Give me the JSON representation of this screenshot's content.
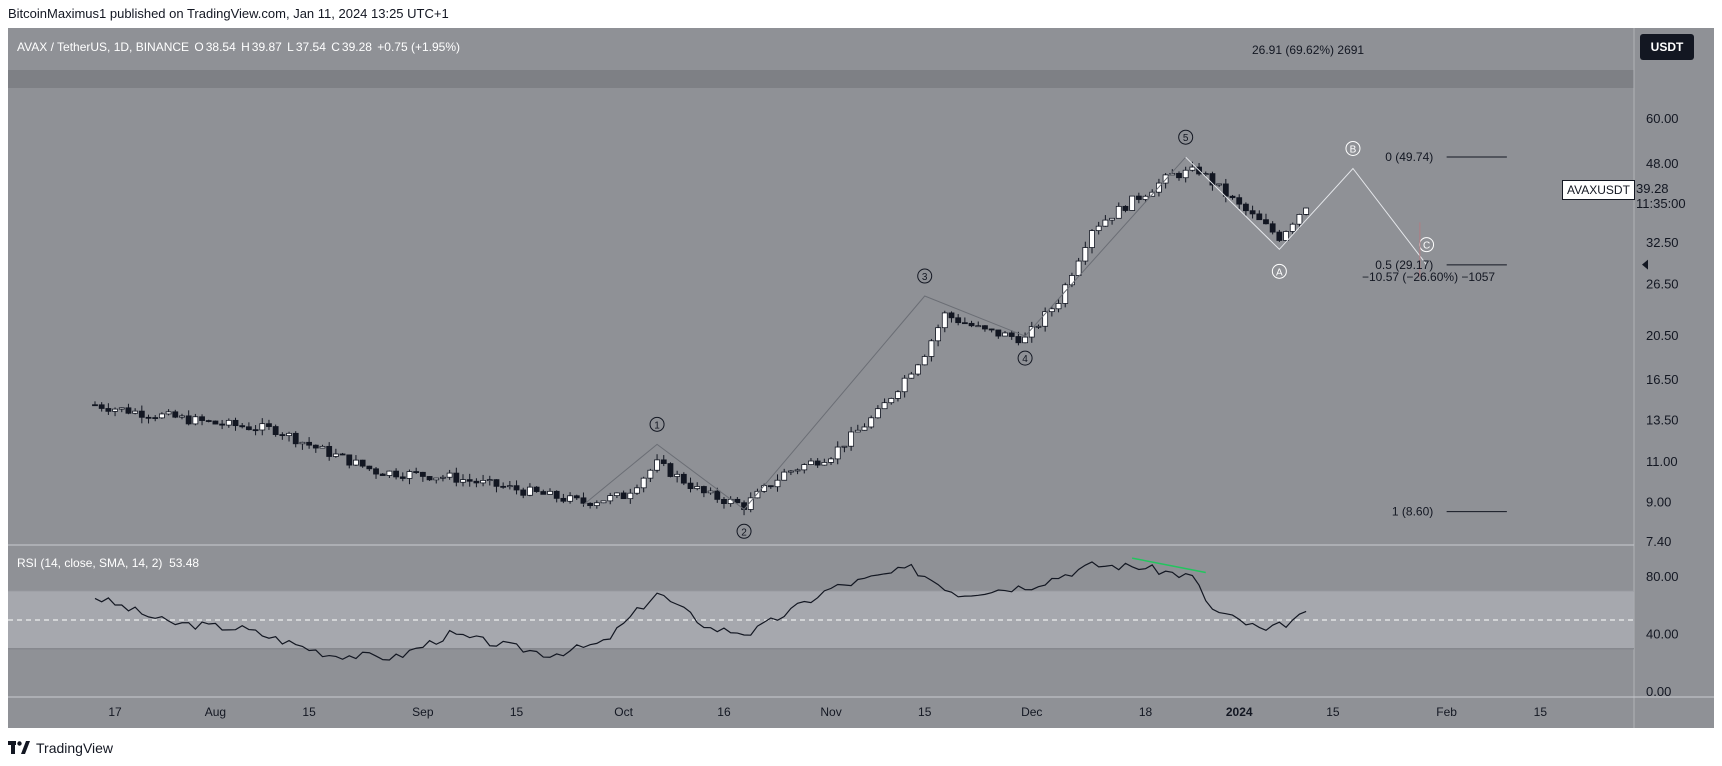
{
  "header": {
    "publisher_line": "BitcoinMaximus1 published on TradingView.com, Jan 11, 2024 13:25 UTC+1"
  },
  "footer": {
    "brand": "TradingView"
  },
  "legend": {
    "symbol": "AVAX / TetherUS, 1D, BINANCE",
    "open_label": "O",
    "open": "38.54",
    "high_label": "H",
    "high": "39.87",
    "low_label": "L",
    "low": "37.54",
    "close_label": "C",
    "close": "39.28",
    "change": "+0.75 (+1.95%)"
  },
  "rsi_legend": {
    "label": "RSI (14, close, SMA, 14, 2)",
    "value": "53.48"
  },
  "currency_button": "USDT",
  "symbol_tag": "AVAXUSDT",
  "current_price": "39.28",
  "countdown": "11:35:00",
  "measure_up": "26.91 (69.62%) 2691",
  "measure_down": "−10.57 (−26.60%) −1057",
  "colors": {
    "panel": "#8f9196",
    "up_candle": "#ffffff",
    "down_candle": "#131722",
    "rsi_line": "#131722",
    "rsi_band": "#a9abb0",
    "divergence": "#22c55e",
    "wave_line": "#6b6e75",
    "projection_line": "#e5e7eb"
  },
  "chart_data": {
    "type": "candlestick",
    "price_axis": {
      "scale": "log",
      "ticks": [
        60.0,
        48.0,
        32.5,
        26.5,
        20.5,
        16.5,
        13.5,
        11.0,
        9.0,
        7.4
      ],
      "tick_labels": [
        "60.00",
        "48.00",
        "32.50",
        "26.50",
        "20.50",
        "16.50",
        "13.50",
        "11.00",
        "9.00",
        "7.40"
      ]
    },
    "rsi_axis": {
      "ticks": [
        80,
        40,
        0
      ],
      "tick_labels": [
        "80.00",
        "40.00",
        "0.00"
      ],
      "band": [
        30,
        70
      ],
      "midline": 50
    },
    "time_axis": {
      "labels": [
        "17",
        "Aug",
        "15",
        "Sep",
        "15",
        "Oct",
        "16",
        "Nov",
        "15",
        "Dec",
        "18",
        "2024",
        "15",
        "Feb",
        "15"
      ],
      "dates": [
        "2023-07-17",
        "2023-08-01",
        "2023-08-15",
        "2023-09-01",
        "2023-09-15",
        "2023-10-01",
        "2023-10-16",
        "2023-11-01",
        "2023-11-15",
        "2023-12-01",
        "2023-12-18",
        "2024-01-01",
        "2024-01-15",
        "2024-02-01",
        "2024-02-15"
      ]
    },
    "price_path": {
      "dates": [
        "2023-07-14",
        "2023-07-20",
        "2023-08-01",
        "2023-08-10",
        "2023-08-16",
        "2023-08-25",
        "2023-09-05",
        "2023-09-15",
        "2023-09-25",
        "2023-10-01",
        "2023-10-06",
        "2023-10-13",
        "2023-10-19",
        "2023-10-25",
        "2023-11-01",
        "2023-11-08",
        "2023-11-15",
        "2023-11-18",
        "2023-11-24",
        "2023-11-30",
        "2023-12-05",
        "2023-12-10",
        "2023-12-16",
        "2023-12-22",
        "2023-12-26",
        "2024-01-01",
        "2024-01-07",
        "2024-01-11"
      ],
      "close": [
        14.6,
        14.1,
        13.3,
        12.9,
        11.8,
        10.5,
        10.2,
        9.6,
        9.0,
        9.3,
        10.9,
        9.4,
        8.85,
        10.4,
        11.4,
        14.0,
        18.9,
        22.8,
        21.0,
        20.2,
        24.5,
        35.0,
        40.0,
        45.5,
        46.5,
        39.0,
        33.5,
        39.28
      ]
    },
    "elliott_waves": [
      {
        "label": "1",
        "date": "2023-10-06",
        "price": 12.0
      },
      {
        "label": "2",
        "date": "2023-10-19",
        "price": 8.7
      },
      {
        "label": "3",
        "date": "2023-11-15",
        "price": 25.0
      },
      {
        "label": "4",
        "date": "2023-11-30",
        "price": 20.5
      },
      {
        "label": "5",
        "date": "2023-12-24",
        "price": 49.7
      },
      {
        "label": "A",
        "date": "2024-01-07",
        "price": 31.5
      },
      {
        "label": "B",
        "date": "2024-01-18",
        "price": 47.0
      },
      {
        "label": "C",
        "date": "2024-01-29",
        "price": 29.2
      }
    ],
    "fib_levels": [
      {
        "label": "0 (49.74)",
        "price": 49.74
      },
      {
        "label": "0.5 (29.17)",
        "price": 29.17
      },
      {
        "label": "1 (8.60)",
        "price": 8.6
      }
    ],
    "rsi": {
      "dates": [
        "2023-07-14",
        "2023-07-25",
        "2023-08-05",
        "2023-08-18",
        "2023-08-28",
        "2023-09-05",
        "2023-09-20",
        "2023-09-28",
        "2023-10-06",
        "2023-10-14",
        "2023-10-20",
        "2023-11-01",
        "2023-11-13",
        "2023-11-20",
        "2023-12-01",
        "2023-12-10",
        "2023-12-17",
        "2023-12-25",
        "2023-12-28",
        "2024-01-05",
        "2024-01-11"
      ],
      "values": [
        66,
        48,
        44,
        26,
        24,
        40,
        26,
        34,
        69,
        44,
        41,
        72,
        86,
        68,
        74,
        88,
        87,
        80,
        57,
        42,
        53.48
      ]
    },
    "rsi_divergence": {
      "from": {
        "date": "2023-12-16",
        "value": 93
      },
      "to": {
        "date": "2023-12-27",
        "value": 83
      }
    }
  }
}
